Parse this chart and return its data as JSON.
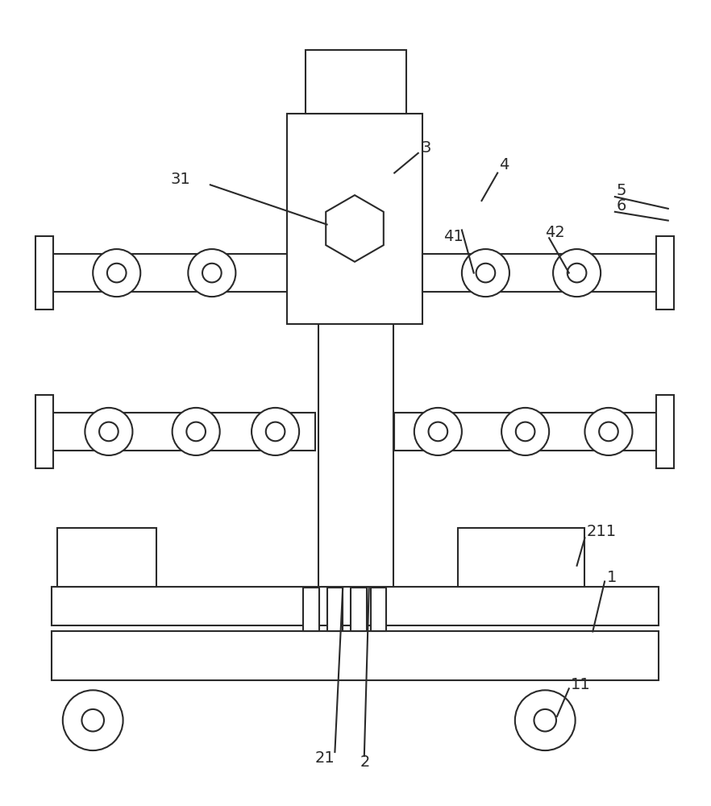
{
  "bg_color": "#ffffff",
  "line_color": "#2a2a2a",
  "lw": 1.5,
  "fig_width": 8.82,
  "fig_height": 10.0
}
